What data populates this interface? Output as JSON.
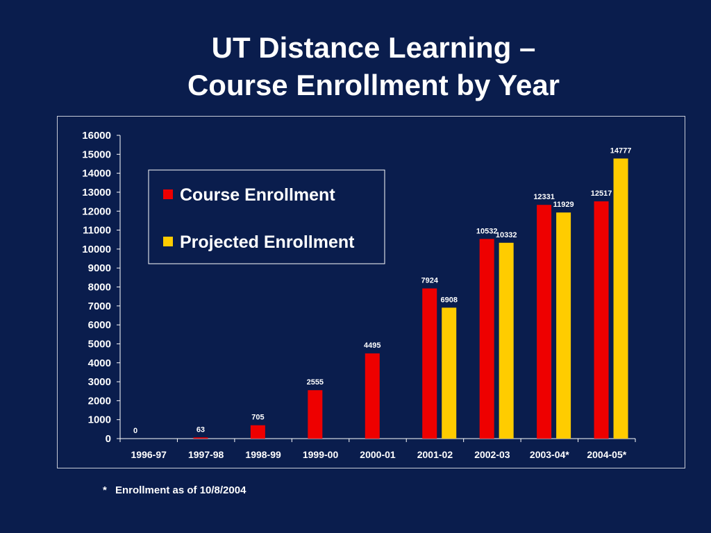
{
  "title": {
    "line1": "UT Distance Learning –",
    "line2": "Course Enrollment by Year"
  },
  "footnote": {
    "marker": "*",
    "text": "Enrollment as of 10/8/2004"
  },
  "colors": {
    "background": "#0a1d4d",
    "course": "#ee0000",
    "projected": "#ffcc00",
    "text": "#ffffff"
  },
  "chart_data": {
    "type": "bar",
    "title": "UT Distance Learning – Course Enrollment by Year",
    "xlabel": "",
    "ylabel": "",
    "ylim": [
      0,
      16000
    ],
    "yticks": [
      "0",
      "1000",
      "2000",
      "3000",
      "4000",
      "5000",
      "6000",
      "7000",
      "8000",
      "9000",
      "10000",
      "11000",
      "12000",
      "13000",
      "14000",
      "15000",
      "16000"
    ],
    "categories": [
      "1996-97",
      "1997-98",
      "1998-99",
      "1999-00",
      "2000-01",
      "2001-02",
      "2002-03",
      "2003-04*",
      "2004-05*"
    ],
    "legend_position": "upper-left",
    "grid": false,
    "series": [
      {
        "name": "Course Enrollment",
        "color": "#ee0000",
        "values": [
          0,
          63,
          705,
          2555,
          4495,
          7924,
          10532,
          12331,
          12517
        ],
        "labels": [
          "0",
          "63",
          "705",
          "2555",
          "4495",
          "7924",
          "10532",
          "12331",
          "12517"
        ]
      },
      {
        "name": "Projected Enrollment",
        "color": "#ffcc00",
        "values": [
          null,
          null,
          null,
          null,
          null,
          6908,
          10332,
          11929,
          14777
        ],
        "labels": [
          "",
          "",
          "",
          "",
          "",
          "6908",
          "10332",
          "11929",
          "14777"
        ]
      }
    ]
  }
}
